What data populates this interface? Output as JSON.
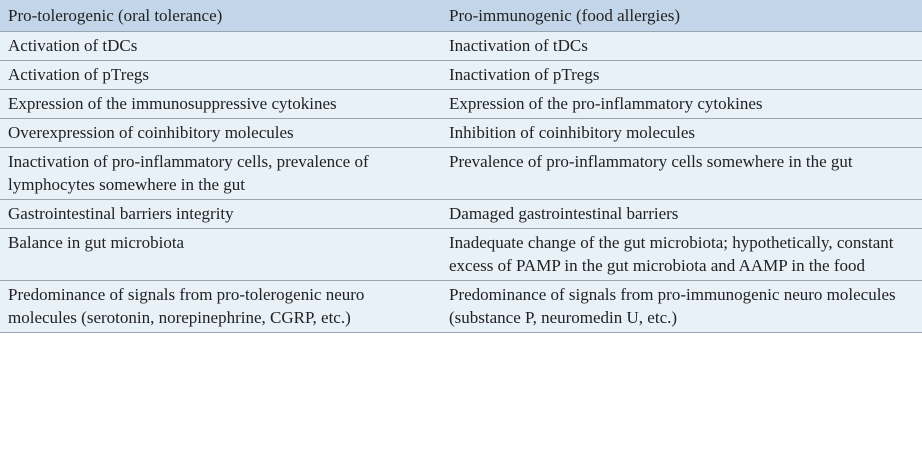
{
  "table": {
    "headers": [
      "Pro-tolerogenic (oral tolerance)",
      "Pro-immunogenic (food allergies)"
    ],
    "rows": [
      [
        "Activation of tDCs",
        "Inactivation of tDCs"
      ],
      [
        "Activation of pTregs",
        "Inactivation of pTregs"
      ],
      [
        "Expression of the immunosuppressive cytokines",
        "Expression of the pro-inflammatory cytokines"
      ],
      [
        "Overexpression of coinhibitory molecules",
        "Inhibition of coinhibitory molecules"
      ],
      [
        "Inactivation of pro-inflammatory cells, prevalence of lymphocytes somewhere in the gut",
        "Prevalence of pro-inflammatory cells somewhere in the gut"
      ],
      [
        "Gastrointestinal barriers integrity",
        "Damaged gastrointestinal barriers"
      ],
      [
        "Balance in gut microbiota",
        "Inadequate change of the gut microbiota; hypothetically, constant excess of PAMP in the gut microbiota and AAMP in the food"
      ],
      [
        "Predominance of signals from pro-tolerogenic neuro molecules (serotonin, norepinephrine, CGRP, etc.)",
        "Predominance of signals from pro-immunogenic neuro molecules (substance P, neuromedin U, etc.)"
      ]
    ]
  },
  "colors": {
    "header_bg": "#c3d5e8",
    "body_bg": "#e8f0f8",
    "rule": "#9aa4ae",
    "text": "#222222"
  }
}
